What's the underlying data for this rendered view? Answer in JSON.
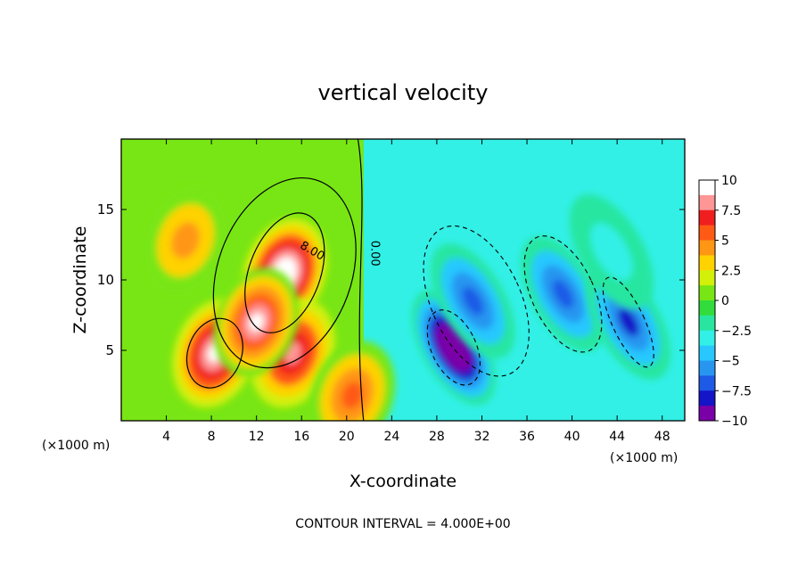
{
  "chart_data": {
    "type": "heatmap",
    "title": "vertical velocity",
    "xlabel": "X-coordinate",
    "ylabel": "Z-coordinate",
    "x_unit_left": "(×1000 m)",
    "x_unit_right": "(×1000 m)",
    "footer": "CONTOUR INTERVAL = 4.000E+00",
    "xlim": [
      0,
      50
    ],
    "ylim": [
      0,
      20
    ],
    "x_ticks": [
      4,
      8,
      12,
      16,
      20,
      24,
      28,
      32,
      36,
      40,
      44,
      48
    ],
    "y_ticks": [
      5,
      10,
      15
    ],
    "colorbar": {
      "range": [
        -10,
        10
      ],
      "ticks": [
        10,
        7.5,
        5,
        2.5,
        0,
        -2.5,
        -5,
        -7.5,
        -10
      ],
      "tick_labels": [
        "10",
        "7.5",
        "5",
        "2.5",
        "0",
        "−2.5",
        "−5",
        "−7.5",
        "−10"
      ],
      "colors": [
        "#7a00a8",
        "#1414c8",
        "#1e5ae6",
        "#2896f0",
        "#28c8ff",
        "#32f0e6",
        "#28e6a0",
        "#32dc3c",
        "#78e614",
        "#d2f00a",
        "#ffd200",
        "#ff9614",
        "#ff5a14",
        "#f01e1e",
        "#ff9696",
        "#ffffff"
      ]
    },
    "contour_labels": [
      "8.00",
      "0.00"
    ],
    "contour_interval": 4,
    "features": [
      {
        "sign": "updraft",
        "x": 14.5,
        "z": 10.5,
        "peak": 14
      },
      {
        "sign": "updraft",
        "x": 8.3,
        "z": 4.8,
        "peak": 12
      },
      {
        "sign": "updraft",
        "x": 15.2,
        "z": 4.8,
        "peak": 10
      },
      {
        "sign": "updraft",
        "x": 12.0,
        "z": 7.0,
        "peak": 11
      },
      {
        "sign": "updraft",
        "x": 5.7,
        "z": 12.8,
        "peak": 5
      },
      {
        "sign": "updraft",
        "x": 20.5,
        "z": 1.8,
        "peak": 7
      },
      {
        "sign": "downdraft",
        "x": 29.5,
        "z": 5.2,
        "peak": -14
      },
      {
        "sign": "downdraft",
        "x": 31.2,
        "z": 8.5,
        "peak": -7
      },
      {
        "sign": "downdraft",
        "x": 39.2,
        "z": 9.0,
        "peak": -7
      },
      {
        "sign": "downdraft",
        "x": 45.0,
        "z": 7.0,
        "peak": -8
      },
      {
        "sign": "downdraft",
        "x": 43.5,
        "z": 12.0,
        "peak": -3
      }
    ]
  }
}
